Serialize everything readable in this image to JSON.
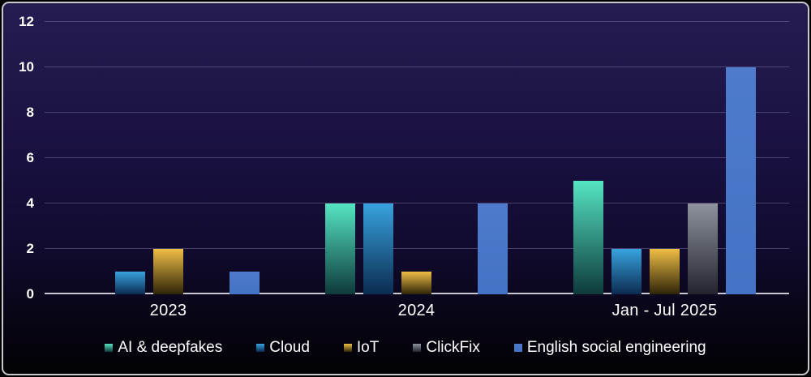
{
  "chart_data": {
    "type": "bar",
    "title": "",
    "xlabel": "",
    "ylabel": "",
    "categories": [
      "2023",
      "2024",
      "Jan - Jul 2025"
    ],
    "series": [
      {
        "name": "AI & deepfakes",
        "values": [
          0,
          4,
          5
        ],
        "color_top": "#55E5C3",
        "color_bottom": "#0E3A3C"
      },
      {
        "name": "Cloud",
        "values": [
          1,
          4,
          2
        ],
        "color_top": "#38A3DF",
        "color_bottom": "#0B2B50"
      },
      {
        "name": "IoT",
        "values": [
          2,
          1,
          2
        ],
        "color_top": "#EFBE45",
        "color_bottom": "#2E2408"
      },
      {
        "name": "ClickFix",
        "values": [
          0,
          0,
          4
        ],
        "color_top": "#8E939C",
        "color_bottom": "#23242E"
      },
      {
        "name": "English social engineering",
        "values": [
          1,
          4,
          10
        ],
        "color_top": "#4E7BCC",
        "color_bottom": "#4472C4"
      }
    ],
    "ylim": [
      0,
      12
    ],
    "yticks": [
      0,
      2,
      4,
      6,
      8,
      10,
      12
    ],
    "grid": true,
    "legend_position": "bottom",
    "colors": {
      "background_top": "#251C52",
      "background_bottom": "#020104",
      "gridline": "rgba(145,140,185,0.40)",
      "baseline": "#DADAE4",
      "frame_border": "#C8C8CD",
      "text": "#FFFFFF"
    }
  }
}
